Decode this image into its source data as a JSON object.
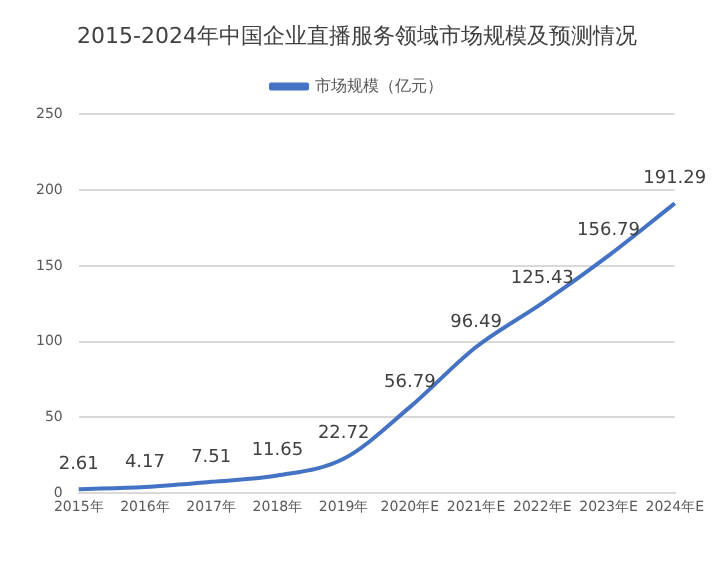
{
  "chart_data": {
    "type": "line",
    "title": "2015-2024年中国企业直播服务领域市场规模及预测情况",
    "categories": [
      "2015年",
      "2016年",
      "2017年",
      "2018年",
      "2019年",
      "2020年E",
      "2021年E",
      "2022年E",
      "2023年E",
      "2024年E"
    ],
    "series": [
      {
        "name": "市场规模（亿元）",
        "color": "#4472c4",
        "values": [
          2.61,
          4.17,
          7.51,
          11.65,
          22.72,
          56.79,
          96.49,
          125.43,
          156.79,
          191.29
        ]
      }
    ],
    "ylim": [
      0,
      250
    ],
    "yticks": [
      0,
      50,
      100,
      150,
      200,
      250
    ],
    "grid": "y",
    "legend": "top",
    "marker": "none",
    "data_labels": true
  }
}
